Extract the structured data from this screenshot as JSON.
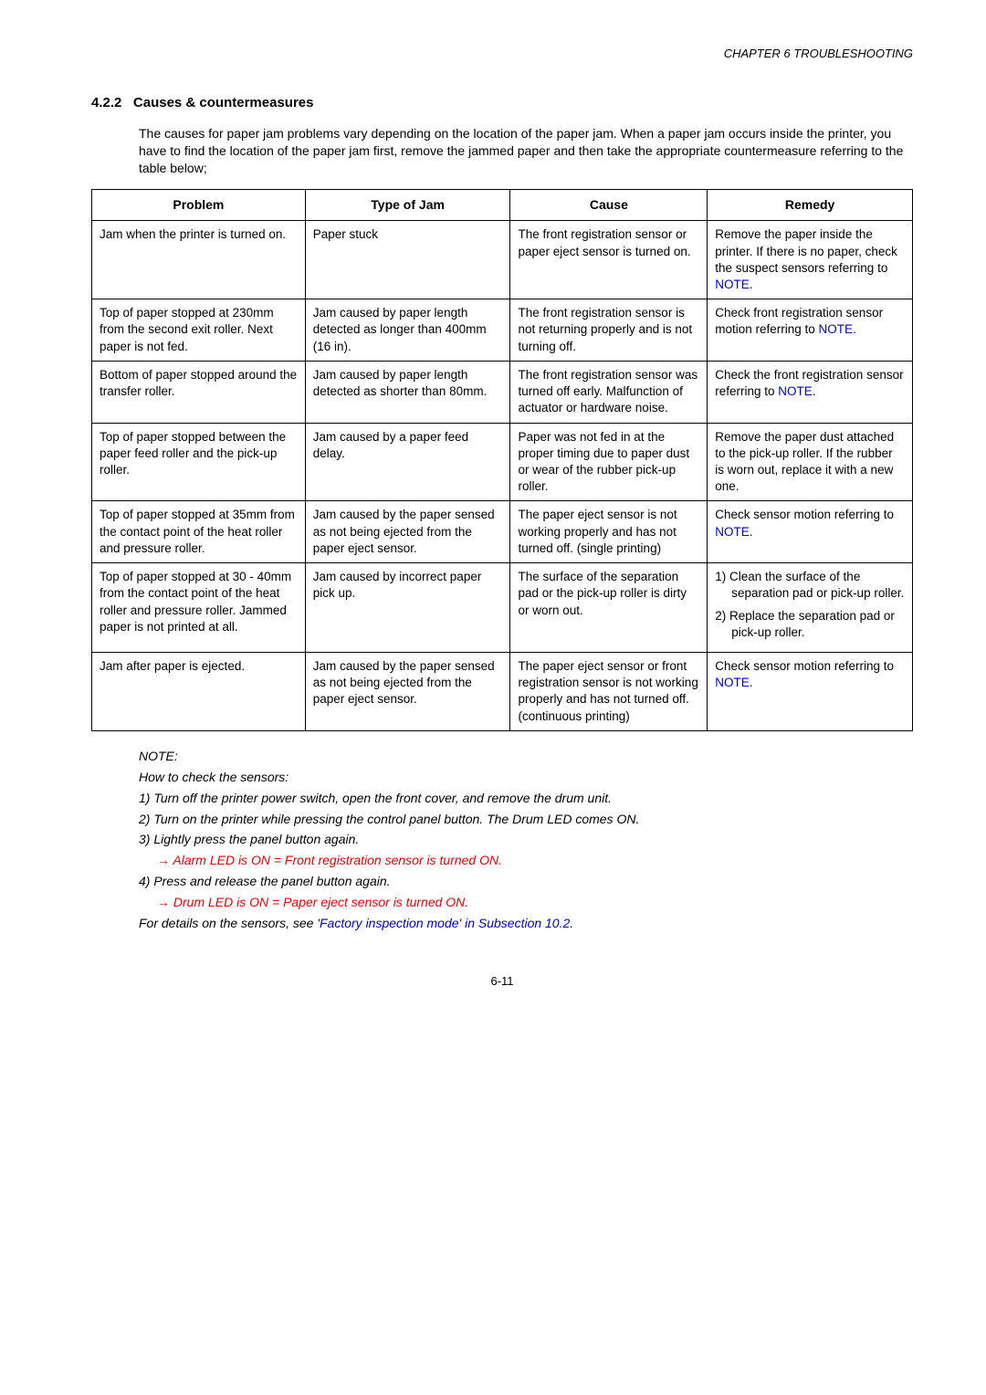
{
  "chapter_header": "CHAPTER 6  TROUBLESHOOTING",
  "section_number": "4.2.2",
  "section_title": "Causes & countermeasures",
  "intro": "The causes for paper jam problems vary depending on the location of the paper jam.  When a paper jam occurs inside the printer, you have to find the location of the paper jam first, remove the jammed paper and then take the appropriate countermeasure referring to the table below;",
  "table": {
    "headers": [
      "Problem",
      "Type of Jam",
      "Cause",
      "Remedy"
    ],
    "rows": [
      {
        "problem": "Jam when the printer is turned on.",
        "type": "Paper stuck",
        "cause": "The front registration sensor or paper eject sensor is turned on.",
        "remedy_pre": "Remove the paper inside the printer.  If there is no paper, check the suspect sensors referring to ",
        "remedy_link": "NOTE",
        "remedy_post": "."
      },
      {
        "problem": "Top of paper stopped at 230mm from the second exit roller.  Next paper is not fed.",
        "type": "Jam caused by paper length detected as longer than 400mm (16 in).",
        "cause": "The front registration sensor is not returning properly and is not turning off.",
        "remedy_pre": "Check front registration sensor motion referring to ",
        "remedy_link": "NOTE",
        "remedy_post": "."
      },
      {
        "problem": "Bottom of paper stopped around the transfer roller.",
        "type": "Jam caused by paper length detected as shorter than 80mm.",
        "cause": "The front registration sensor was turned off early.  Malfunction of actuator or hardware noise.",
        "remedy_pre": "Check the front registration sensor referring to ",
        "remedy_link": "NOTE",
        "remedy_post": "."
      },
      {
        "problem": "Top of paper stopped between the paper feed roller and the pick-up roller.",
        "type": "Jam caused by a paper feed delay.",
        "cause": "Paper was not fed in at the proper timing due to paper dust or wear of the rubber pick-up roller.",
        "remedy_plain": "Remove the paper dust attached to the pick-up roller.  If the rubber is worn out, replace it with a new one."
      },
      {
        "problem": "Top of paper stopped at 35mm from the contact point of the heat roller and pressure roller.",
        "type": "Jam caused by the paper sensed as not being ejected from the paper eject sensor.",
        "cause": "The paper eject sensor is not working properly and has not turned off. (single printing)",
        "remedy_pre": "Check sensor motion referring to ",
        "remedy_link": "NOTE",
        "remedy_post": "."
      },
      {
        "problem": "Top of paper stopped at 30 - 40mm from the contact point of the heat roller and pressure roller. Jammed paper is not printed at all.",
        "type": "Jam caused by incorrect paper pick up.",
        "cause": "The surface of the separation pad or the pick-up roller is dirty or worn out.",
        "remedy_list": [
          "1)  Clean the surface of the separation pad or pick-up roller.",
          "2)  Replace the separation pad or pick-up roller."
        ]
      },
      {
        "problem": "Jam after paper is ejected.",
        "type": "Jam caused by the paper sensed as not being ejected from the paper eject sensor.",
        "cause": "The paper eject sensor or front registration sensor is not working properly and has not turned off.  (continuous printing)",
        "remedy_pre": "Check sensor motion referring to ",
        "remedy_link": "NOTE",
        "remedy_post": "."
      }
    ]
  },
  "note": {
    "heading": "NOTE:",
    "sub": "How to check the sensors:",
    "items": [
      "1)  Turn off the printer power switch, open the front cover, and remove the drum unit.",
      "2)  Turn on the printer while pressing the control panel button.  The Drum LED comes ON.",
      "3)  Lightly press the panel button again."
    ],
    "arrow1": "Alarm LED is ON = Front registration sensor is turned ON.",
    "item4": "4)  Press and release the panel button again.",
    "arrow2": "Drum LED is ON = Paper eject sensor is turned ON.",
    "details_pre": "For details on the sensors, see ",
    "details_link": "'Factory inspection mode' in Subsection 10.2",
    "details_post": "."
  },
  "page_number": "6-11"
}
